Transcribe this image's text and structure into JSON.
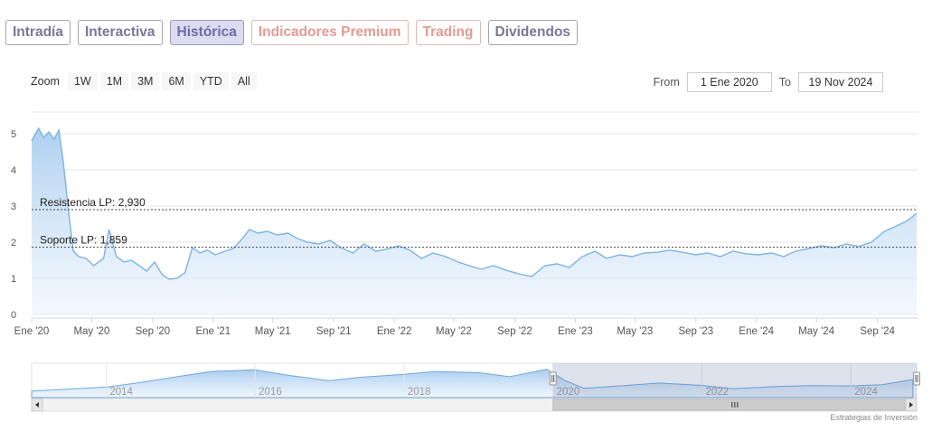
{
  "tabs": [
    {
      "label": "Intradía",
      "state": "normal"
    },
    {
      "label": "Interactiva",
      "state": "normal"
    },
    {
      "label": "Histórica",
      "state": "active"
    },
    {
      "label": "Indicadores Premium",
      "state": "premium"
    },
    {
      "label": "Trading",
      "state": "premium"
    },
    {
      "label": "Dividendos",
      "state": "normal"
    }
  ],
  "zoom": {
    "label": "Zoom",
    "buttons": [
      "1W",
      "1M",
      "3M",
      "6M",
      "YTD",
      "All"
    ]
  },
  "range": {
    "from_label": "From",
    "from_value": "1 Ene 2020",
    "to_label": "To",
    "to_value": "19 Nov 2024"
  },
  "credit": "Estrategias de Inversión",
  "colors": {
    "line": "#7fb3e3",
    "fill_top": "#a9cdef",
    "fill_bottom": "#eaf3fc",
    "grid": "#e6e6e6"
  },
  "chart_data": {
    "type": "area",
    "x_range": [
      "2020-01-01",
      "2024-11-19"
    ],
    "ylim": [
      0,
      5
    ],
    "y_ticks": [
      0,
      1,
      2,
      3,
      4,
      5
    ],
    "x_ticks": [
      "Ene '20",
      "May '20",
      "Sep '20",
      "Ene '21",
      "May '21",
      "Sep '21",
      "Ene '22",
      "May '22",
      "Sep '22",
      "Ene '23",
      "May '23",
      "Sep '23",
      "Ene '24",
      "May '24",
      "Sep '24"
    ],
    "grid": true,
    "series": [
      {
        "x": [
          "2020-01-01",
          "2020-01-15",
          "2020-01-25",
          "2020-02-05",
          "2020-02-15",
          "2020-02-25",
          "2020-03-05",
          "2020-03-15",
          "2020-03-25",
          "2020-04-05",
          "2020-04-20",
          "2020-05-05",
          "2020-05-25",
          "2020-06-05",
          "2020-06-20",
          "2020-07-05",
          "2020-07-20",
          "2020-08-05",
          "2020-08-20",
          "2020-09-05",
          "2020-09-20",
          "2020-10-05",
          "2020-10-20",
          "2020-11-05",
          "2020-11-20",
          "2020-12-05",
          "2020-12-20",
          "2021-01-05",
          "2021-01-25",
          "2021-02-10",
          "2021-03-01",
          "2021-03-15",
          "2021-04-01",
          "2021-04-20",
          "2021-05-10",
          "2021-06-01",
          "2021-06-20",
          "2021-07-10",
          "2021-08-01",
          "2021-08-25",
          "2021-09-15",
          "2021-10-10",
          "2021-11-01",
          "2021-11-25",
          "2021-12-15",
          "2022-01-10",
          "2022-02-01",
          "2022-02-25",
          "2022-03-20",
          "2022-04-15",
          "2022-05-10",
          "2022-06-01",
          "2022-06-25",
          "2022-07-20",
          "2022-08-15",
          "2022-09-10",
          "2022-10-05",
          "2022-11-01",
          "2022-11-25",
          "2022-12-20",
          "2023-01-15",
          "2023-02-10",
          "2023-03-05",
          "2023-04-01",
          "2023-04-25",
          "2023-05-20",
          "2023-06-15",
          "2023-07-10",
          "2023-08-05",
          "2023-09-01",
          "2023-09-25",
          "2023-10-20",
          "2023-11-15",
          "2023-12-10",
          "2024-01-05",
          "2024-02-01",
          "2024-02-25",
          "2024-03-20",
          "2024-04-15",
          "2024-05-10",
          "2024-06-05",
          "2024-07-01",
          "2024-07-25",
          "2024-08-20",
          "2024-09-15",
          "2024-10-10",
          "2024-11-01",
          "2024-11-19"
        ],
        "y": [
          4.8,
          5.15,
          4.9,
          5.05,
          4.85,
          5.1,
          4.2,
          2.9,
          1.75,
          1.6,
          1.55,
          1.35,
          1.55,
          2.35,
          1.6,
          1.45,
          1.5,
          1.35,
          1.2,
          1.45,
          1.1,
          0.97,
          1.0,
          1.15,
          1.85,
          1.7,
          1.78,
          1.65,
          1.75,
          1.82,
          2.1,
          2.35,
          2.25,
          2.3,
          2.2,
          2.25,
          2.1,
          2.0,
          1.95,
          2.05,
          1.85,
          1.7,
          1.95,
          1.75,
          1.8,
          1.9,
          1.78,
          1.55,
          1.7,
          1.6,
          1.45,
          1.35,
          1.25,
          1.35,
          1.22,
          1.12,
          1.05,
          1.35,
          1.4,
          1.3,
          1.6,
          1.75,
          1.55,
          1.65,
          1.6,
          1.7,
          1.72,
          1.78,
          1.72,
          1.65,
          1.7,
          1.6,
          1.75,
          1.68,
          1.65,
          1.7,
          1.6,
          1.75,
          1.82,
          1.9,
          1.85,
          1.95,
          1.88,
          2.0,
          2.3,
          2.45,
          2.6,
          2.8
        ]
      }
    ],
    "annotations": [
      {
        "label": "Resistencia LP: 2,930",
        "y": 2.9
      },
      {
        "label": "Soporte LP: 1,859",
        "y": 1.86
      }
    ],
    "navigator": {
      "x_ticks": [
        "2014",
        "2016",
        "2018",
        "2020",
        "2022",
        "2024"
      ],
      "selected_range": [
        "2020-01-01",
        "2024-11-19"
      ],
      "series": {
        "x": [
          "2013-01",
          "2013-06",
          "2014-01",
          "2014-06",
          "2015-01",
          "2015-06",
          "2016-01",
          "2016-06",
          "2017-01",
          "2017-06",
          "2018-01",
          "2018-06",
          "2019-01",
          "2019-06",
          "2019-12",
          "2020-03",
          "2020-06",
          "2021-01",
          "2021-06",
          "2022-01",
          "2022-06",
          "2023-01",
          "2023-06",
          "2024-01",
          "2024-06",
          "2024-11"
        ],
        "y": [
          0.8,
          1.1,
          1.5,
          2.2,
          3.4,
          4.2,
          4.5,
          3.6,
          2.6,
          3.2,
          3.7,
          4.2,
          4.0,
          3.3,
          4.6,
          2.6,
          1.3,
          1.8,
          2.2,
          1.8,
          1.2,
          1.6,
          1.75,
          1.7,
          1.9,
          2.8
        ]
      }
    }
  }
}
